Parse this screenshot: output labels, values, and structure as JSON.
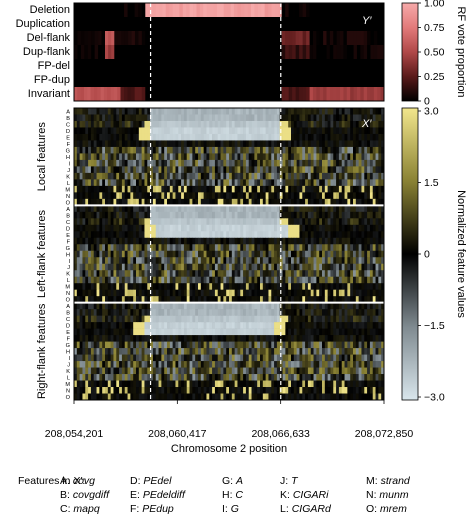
{
  "chart_data": [
    {
      "type": "heatmap",
      "panel_label": "Y′",
      "rows": [
        "Deletion",
        "Duplication",
        "Del-flank",
        "Dup-flank",
        "FP-del",
        "FP-dup",
        "Invariant"
      ],
      "colorbar": {
        "label": "RF vote proportion",
        "ticks": [
          "1.00",
          "0.75",
          "0.50",
          "0.25",
          "0"
        ],
        "range": [
          0,
          1
        ],
        "colors": [
          "#000000",
          "#5a1a1a",
          "#b04848",
          "#e27a7a",
          "#f6aaaa"
        ]
      },
      "profile": [
        {
          "label": "Deletion",
          "segments": [
            [
              0,
              0.15,
              0.0
            ],
            [
              0.15,
              0.23,
              0.02
            ],
            [
              0.23,
              0.67,
              0.95
            ],
            [
              0.67,
              0.76,
              0.02
            ],
            [
              0.76,
              1.0,
              0.0
            ]
          ]
        },
        {
          "label": "Duplication",
          "segments": [
            [
              0,
              1.0,
              0.0
            ]
          ]
        },
        {
          "label": "Del-flank",
          "segments": [
            [
              0,
              0.1,
              0.05
            ],
            [
              0.1,
              0.13,
              0.55
            ],
            [
              0.13,
              0.23,
              0.05
            ],
            [
              0.23,
              0.67,
              0.0
            ],
            [
              0.67,
              0.76,
              0.3
            ],
            [
              0.76,
              1.0,
              0.05
            ]
          ]
        },
        {
          "label": "Dup-flank",
          "segments": [
            [
              0,
              0.1,
              0.02
            ],
            [
              0.1,
              0.13,
              0.45
            ],
            [
              0.13,
              0.67,
              0.0
            ],
            [
              0.67,
              0.76,
              0.15
            ],
            [
              0.76,
              1.0,
              0.02
            ]
          ]
        },
        {
          "label": "FP-del",
          "segments": [
            [
              0,
              1.0,
              0.0
            ]
          ]
        },
        {
          "label": "FP-dup",
          "segments": [
            [
              0,
              1.0,
              0.0
            ]
          ]
        },
        {
          "label": "Invariant",
          "segments": [
            [
              0,
              0.15,
              0.55
            ],
            [
              0.15,
              0.23,
              0.2
            ],
            [
              0.23,
              0.67,
              0.0
            ],
            [
              0.67,
              0.76,
              0.2
            ],
            [
              0.76,
              1.0,
              0.45
            ]
          ]
        }
      ],
      "breakpoints": [
        "208,060,417",
        "208,066,633"
      ]
    },
    {
      "type": "heatmap",
      "panel_label": "X′",
      "groups": [
        {
          "label": "Local features",
          "rows": [
            "A",
            "B",
            "C",
            "D",
            "E",
            "F",
            "G",
            "H",
            "I",
            "J",
            "K",
            "L",
            "M",
            "N",
            "O"
          ]
        },
        {
          "label": "Left-flank features",
          "rows": [
            "A",
            "B",
            "C",
            "D",
            "E",
            "F",
            "G",
            "H",
            "I",
            "J",
            "K",
            "L",
            "M",
            "N",
            "O"
          ]
        },
        {
          "label": "Right-flank features",
          "rows": [
            "A",
            "B",
            "C",
            "D",
            "E",
            "F",
            "G",
            "H",
            "I",
            "J",
            "K",
            "L",
            "M",
            "N",
            "O"
          ]
        }
      ],
      "colorbar": {
        "label": "Normalized feature values",
        "ticks": [
          "3.0",
          "1.5",
          "0",
          "−1.5",
          "−3.0"
        ],
        "range": [
          -3,
          3
        ],
        "colors_low_to_high": [
          "#d9e6ec",
          "#7f8a90",
          "#000000",
          "#8a8234",
          "#f2e68c"
        ]
      },
      "x_axis": {
        "label": "Chromosome 2 position",
        "ticks": [
          "208,054,201",
          "208,060,417",
          "208,066,633",
          "208,072,850"
        ],
        "range": [
          208054201,
          208072850
        ]
      }
    }
  ],
  "legend": {
    "title": "Features in X′:",
    "items": [
      {
        "key": "A:",
        "name": "covg"
      },
      {
        "key": "B:",
        "name": "covgdiff"
      },
      {
        "key": "C:",
        "name": "mapq"
      },
      {
        "key": "D:",
        "name": "PEdel"
      },
      {
        "key": "E:",
        "name": "PEdeldiff"
      },
      {
        "key": "F:",
        "name": "PEdup"
      },
      {
        "key": "G:",
        "name": "A"
      },
      {
        "key": "H:",
        "name": "C"
      },
      {
        "key": "I:",
        "name": "G"
      },
      {
        "key": "J:",
        "name": "T"
      },
      {
        "key": "K:",
        "name": "CIGARi"
      },
      {
        "key": "L:",
        "name": "CIGARd"
      },
      {
        "key": "M:",
        "name": "strand"
      },
      {
        "key": "N:",
        "name": "munm"
      },
      {
        "key": "O:",
        "name": "mrem"
      }
    ]
  }
}
